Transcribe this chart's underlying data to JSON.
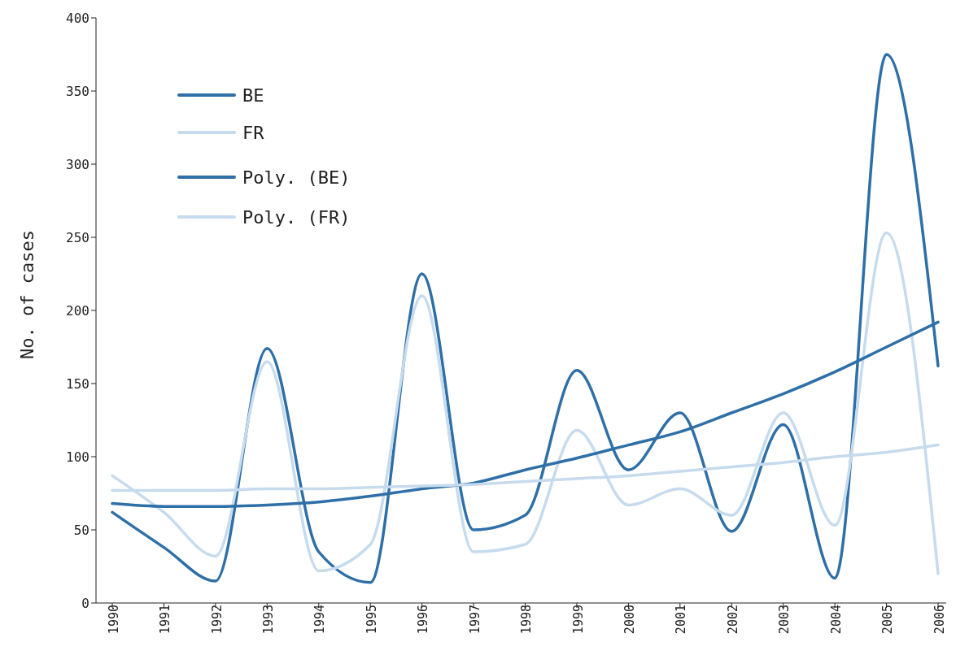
{
  "chart_data": {
    "type": "line",
    "ylabel": "No. of cases",
    "categories": [
      "1990",
      "1991",
      "1992",
      "1993",
      "1994",
      "1995",
      "1996",
      "1997",
      "1998",
      "1999",
      "2000",
      "2001",
      "2002",
      "2003",
      "2004",
      "2005",
      "2006"
    ],
    "series": [
      {
        "name": "BE",
        "color": "#2e6fa7",
        "values": [
          62,
          38,
          15,
          174,
          35,
          14,
          225,
          50,
          60,
          159,
          91,
          130,
          49,
          122,
          17,
          375,
          162
        ]
      },
      {
        "name": "FR",
        "color": "#c6dbed",
        "values": [
          87,
          62,
          32,
          165,
          22,
          40,
          210,
          35,
          40,
          118,
          67,
          78,
          60,
          130,
          53,
          253,
          20
        ]
      },
      {
        "name": "Poly. (BE)",
        "type": "line",
        "color": "#2e6fa7",
        "values": [
          68,
          66,
          66,
          67,
          69,
          73,
          78,
          82,
          91,
          99,
          108,
          117,
          130,
          143,
          158,
          175,
          192
        ]
      },
      {
        "name": "Poly. (FR)",
        "type": "line",
        "color": "#c6dbed",
        "values": [
          77,
          77,
          77,
          78,
          78,
          79,
          80,
          81,
          83,
          85,
          87,
          90,
          93,
          96,
          100,
          103,
          108
        ]
      }
    ],
    "ylim": [
      0,
      400
    ],
    "yticks": [
      0,
      50,
      100,
      150,
      200,
      250,
      300,
      350,
      400
    ],
    "grid": false,
    "legend": "top left",
    "marker": "none",
    "line_style": "solid"
  }
}
